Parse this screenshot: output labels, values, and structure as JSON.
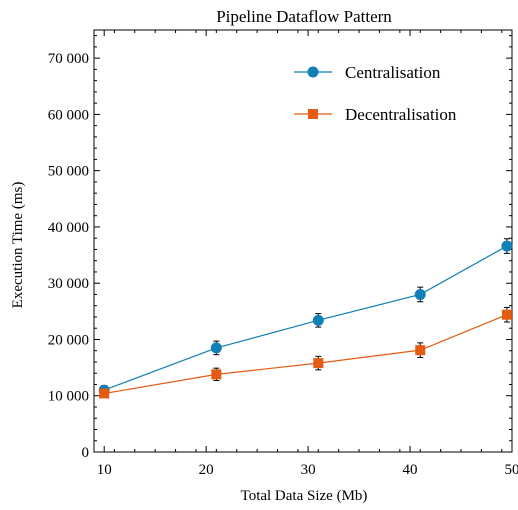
{
  "chart_data": {
    "type": "line",
    "title": "Pipeline Dataflow Pattern",
    "xlabel": "Total Data Size (Mb)",
    "ylabel": "Execution Time (ms)",
    "xlim": [
      9,
      50
    ],
    "ylim": [
      0,
      75000
    ],
    "x_ticks": [
      10,
      20,
      30,
      40,
      50
    ],
    "x_tick_labels": [
      "10",
      "20",
      "30",
      "40",
      "50"
    ],
    "y_ticks": [
      0,
      10000,
      20000,
      30000,
      40000,
      50000,
      60000,
      70000
    ],
    "y_tick_labels": [
      "0",
      "10 000",
      "20 000",
      "30 000",
      "40 000",
      "50 000",
      "60 000",
      "70 000"
    ],
    "legend_position": "top-right",
    "grid": false,
    "x": [
      10,
      21,
      31,
      41,
      49.5
    ],
    "series": [
      {
        "name": "Centralisation",
        "color": "#0f7fb5",
        "marker": "circle",
        "values": [
          11000,
          18500,
          23400,
          28000,
          36600
        ],
        "errors": [
          800,
          1200,
          1200,
          1300,
          1300
        ]
      },
      {
        "name": "Decentralisation",
        "color": "#e55b12",
        "marker": "square",
        "values": [
          10400,
          13800,
          15800,
          18100,
          24400
        ],
        "errors": [
          700,
          1100,
          1200,
          1300,
          1300
        ]
      }
    ]
  }
}
